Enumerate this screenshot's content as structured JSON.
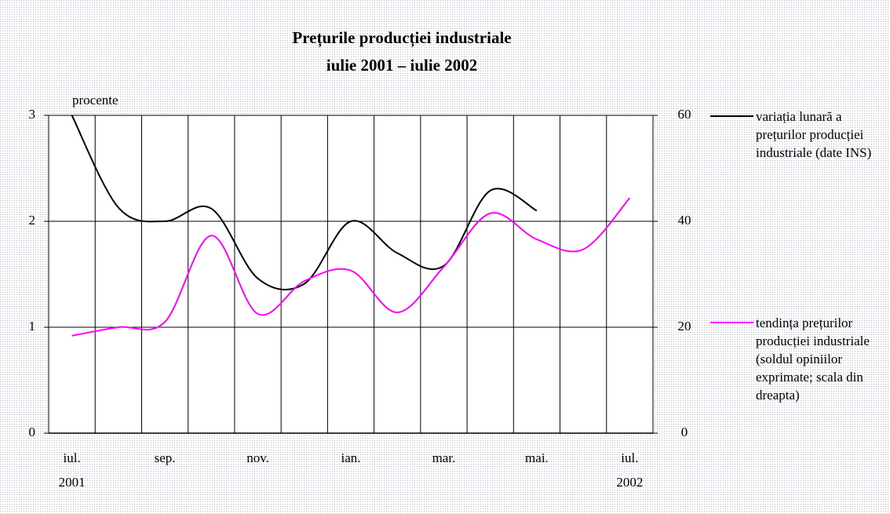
{
  "chart_data": {
    "type": "line",
    "title": "Prețurile producției industriale",
    "subtitle": "iulie 2001 – iulie 2002",
    "y_label": "procente",
    "categories": [
      "iul.",
      null,
      "sep.",
      null,
      "nov.",
      null,
      "ian.",
      null,
      "mar.",
      null,
      "mai.",
      null,
      "iul."
    ],
    "year_labels": [
      "2001",
      "2002"
    ],
    "series": [
      {
        "name": "variația lunară a prețurilor producției industriale (date INS)",
        "color": "#000000",
        "axis": "y",
        "values": [
          3.0,
          2.13,
          2.0,
          2.12,
          1.46,
          1.41,
          2.0,
          1.7,
          1.58,
          2.29,
          2.1,
          null,
          null
        ]
      },
      {
        "name": "tendința prețurilor producției industriale (soldul opiniilor exprimate; scala din dreapta)",
        "color": "#ff00ff",
        "axis": "y2",
        "values": [
          18.4,
          20,
          21,
          37.3,
          22.5,
          28.7,
          30.7,
          22.8,
          31.4,
          41.5,
          36.6,
          34.7,
          44.4
        ]
      }
    ],
    "ylim": [
      0,
      3
    ],
    "yticks": [
      0,
      1,
      2,
      3
    ],
    "y2lim": [
      0,
      60
    ],
    "y2ticks": [
      0,
      20,
      40,
      60
    ],
    "grid": true
  }
}
